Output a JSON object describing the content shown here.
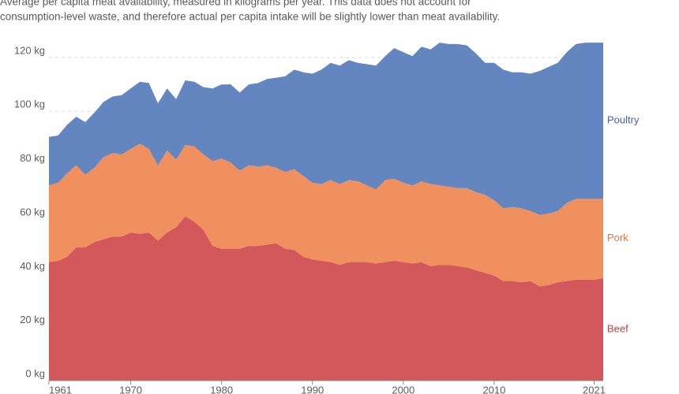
{
  "chart_data": {
    "type": "stacked_area",
    "subtitle_lines": [
      "Average per capita meat availability, measured in kilograms per year. This data does not account for",
      "consumption-level waste, and therefore actual per capita intake will be slightly lower than meat availability."
    ],
    "x": [
      1961,
      1962,
      1963,
      1964,
      1965,
      1966,
      1967,
      1968,
      1969,
      1970,
      1971,
      1972,
      1973,
      1974,
      1975,
      1976,
      1977,
      1978,
      1979,
      1980,
      1981,
      1982,
      1983,
      1984,
      1985,
      1986,
      1987,
      1988,
      1989,
      1990,
      1991,
      1992,
      1993,
      1994,
      1995,
      1996,
      1997,
      1998,
      1999,
      2000,
      2001,
      2002,
      2003,
      2004,
      2005,
      2006,
      2007,
      2008,
      2009,
      2010,
      2011,
      2012,
      2013,
      2014,
      2015,
      2016,
      2017,
      2018,
      2019,
      2020,
      2021,
      2022
    ],
    "xlim": [
      1961,
      2022
    ],
    "xticks": [
      1961,
      1970,
      1980,
      1990,
      2000,
      2010,
      2021
    ],
    "ylim": [
      0,
      130
    ],
    "yticks": [
      {
        "value": 0,
        "label": "0 kg"
      },
      {
        "value": 20,
        "label": "20 kg"
      },
      {
        "value": 40,
        "label": "40 kg"
      },
      {
        "value": 60,
        "label": "60 kg"
      },
      {
        "value": 80,
        "label": "80 kg"
      },
      {
        "value": 100,
        "label": "100 kg"
      },
      {
        "value": 120,
        "label": "120 kg"
      }
    ],
    "grid": true,
    "series": [
      {
        "name": "Beef",
        "color": "#d14f52",
        "label_color": "#c33f3f",
        "values": [
          44,
          44.5,
          46,
          49.5,
          49.5,
          51.5,
          52.5,
          53.5,
          53.5,
          55,
          54.5,
          55,
          52,
          55,
          57,
          61,
          59,
          56,
          50,
          49,
          49,
          49,
          50,
          50,
          50.5,
          51,
          49,
          48.5,
          46,
          45,
          44.5,
          44,
          43,
          44,
          44,
          44,
          43.5,
          44,
          44.5,
          44,
          43.5,
          44,
          42.5,
          43,
          43,
          42.5,
          42,
          41,
          40,
          39,
          37,
          37,
          36.5,
          37,
          35,
          35.5,
          36.5,
          37,
          37.5,
          37.5,
          37.5,
          38
        ]
      },
      {
        "name": "Pork",
        "color": "#ee8a55",
        "label_color": "#e0763b",
        "values": [
          28.5,
          29,
          31,
          30.5,
          27,
          27.5,
          30.5,
          31,
          30.5,
          31,
          33.5,
          31,
          28,
          30.5,
          25,
          26.5,
          28,
          28,
          31.5,
          33.5,
          32,
          29,
          30,
          29.5,
          29.5,
          28,
          28.5,
          30,
          30,
          28.5,
          28.5,
          30.5,
          30,
          30.5,
          30,
          28.5,
          27.5,
          30.5,
          30.5,
          29.5,
          29,
          30,
          30.5,
          29.5,
          29,
          29,
          29.5,
          29,
          29,
          28,
          27,
          27.5,
          27.5,
          26,
          26.5,
          26.5,
          26.5,
          29,
          30,
          30,
          30,
          29.5
        ]
      },
      {
        "name": "Poultry",
        "color": "#5b7fbd",
        "label_color": "#3f65a8",
        "values": [
          18,
          17.5,
          18,
          18,
          19.5,
          20.5,
          20.5,
          21,
          22,
          22.5,
          23,
          24.5,
          23,
          23,
          22.5,
          24,
          24,
          25,
          27,
          27.5,
          29,
          29,
          30,
          31,
          32,
          33.5,
          35.5,
          37,
          38.5,
          40.5,
          42.5,
          43.5,
          44,
          44.5,
          44,
          45,
          46,
          46,
          48.5,
          48.5,
          48,
          50,
          50,
          53,
          53,
          53.5,
          53,
          51.5,
          49,
          51,
          51.5,
          50,
          50.5,
          51,
          53.5,
          54.5,
          55,
          56,
          57.5,
          58,
          58,
          58
        ]
      }
    ]
  }
}
